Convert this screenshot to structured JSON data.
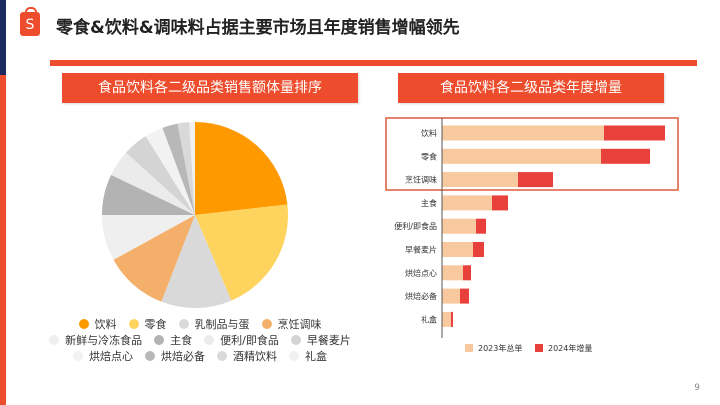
{
  "slide": {
    "title": "零食&饮料&调味料占据主要市场且年度销售增幅领先",
    "logo_letter": "S",
    "page_number": "9",
    "brand_color": "#ee4d2d"
  },
  "chart_data": [
    {
      "type": "pie",
      "title": "食品饮料各二级品类销售额体量排序",
      "legend_position": "bottom",
      "categories": [
        "饮料",
        "零食",
        "乳制品与蛋",
        "烹饪调味",
        "新鲜与冷冻食品",
        "主食",
        "便利/即食品",
        "早餐麦片",
        "烘焙点心",
        "烘焙必备",
        "酒精饮料",
        "礼盒"
      ],
      "values": [
        23.2,
        20.4,
        12.3,
        11.1,
        8.0,
        7.1,
        4.6,
        4.4,
        3.2,
        2.7,
        2.0,
        1.0
      ],
      "colors": [
        "#ff9900",
        "#ffd45e",
        "#d9d9d9",
        "#f4b06a",
        "#efefef",
        "#b3b3b3",
        "#ebebeb",
        "#d4d4d4",
        "#f2f2f2",
        "#b8b8b8",
        "#d9d9d9",
        "#f0f0f0"
      ]
    },
    {
      "type": "bar",
      "orientation": "horizontal",
      "stacked": true,
      "title": "食品饮料各二级品类年度增量",
      "legend_position": "bottom",
      "highlighted_categories": [
        "饮料",
        "零食",
        "烹饪调味"
      ],
      "categories": [
        "饮料",
        "零食",
        "烹饪调味",
        "主食",
        "便利/即食品",
        "早餐麦片",
        "烘焙点心",
        "烘焙必备",
        "礼盒"
      ],
      "series": [
        {
          "name": "2023年总单",
          "color": "#f8c99e",
          "values": [
            162,
            159,
            76,
            50,
            34,
            31,
            21,
            18,
            9
          ]
        },
        {
          "name": "2024年增量",
          "color": "#e8403a",
          "values": [
            61,
            49,
            35,
            16,
            10,
            11,
            8,
            9,
            2
          ]
        }
      ]
    }
  ]
}
